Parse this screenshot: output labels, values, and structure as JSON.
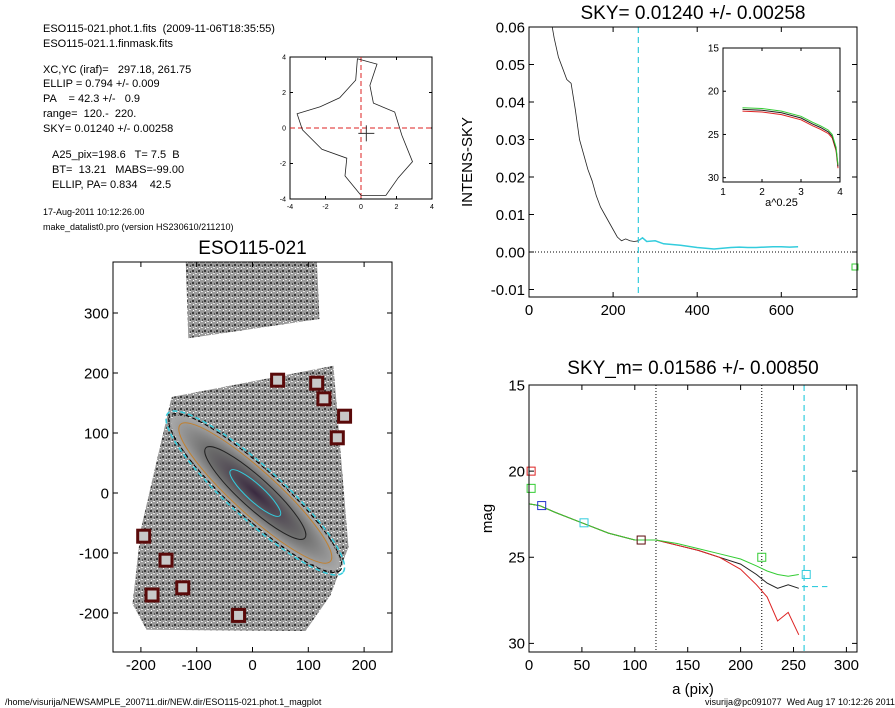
{
  "header": {
    "line1": "ESO115-021.phot.1.fits  (2009-11-06T18:35:55)",
    "line2": "ESO115-021.1.finmask.fits",
    "line3": "XC,YC (iraf)=   297.18, 261.75",
    "line4": "ELLIP = 0.794 +/- 0.009",
    "line5": "PA    = 42.3 +/-   0.9",
    "line6": "range=  120.-  220.",
    "line7": "SKY= 0.01240 +/- 0.00258",
    "line8": "A25_pix=198.6   T= 7.5  B",
    "line9": "BT=  13.21   MABS=-99.00",
    "line10": "ELLIP, PA= 0.834    42.5",
    "date": "17-Aug-2011 10:12:26.00",
    "program": "make_datalist0.pro (version HS230610/211210)"
  },
  "footer": {
    "path": "/home/visurija/NEWSAMPLE_200711.dir/NEW.dir/ESO115-021.phot.1_magplot",
    "user": "visurija@pc091077  Wed Aug 17 10:12:26 2011"
  },
  "colors": {
    "cyan": "#33ccdd",
    "red": "#dd2222",
    "green": "#33cc33",
    "blue": "#2233cc",
    "maroon": "#5a0a0a"
  },
  "chart_data": [
    {
      "type": "line",
      "id": "center-plot",
      "xlim": [
        -4,
        4
      ],
      "ylim": [
        -4,
        4
      ],
      "xticks": [
        "-4",
        "-2",
        "0",
        "2",
        "4"
      ],
      "yticks": [
        "-4",
        "-2",
        "0",
        "2",
        "4"
      ],
      "contour": [
        [
          0,
          -3.8
        ],
        [
          1.4,
          -3.8
        ],
        [
          2.1,
          -2.8
        ],
        [
          2.9,
          -1.9
        ],
        [
          2.3,
          -0.4
        ],
        [
          1.9,
          0.9
        ],
        [
          0.7,
          1.4
        ],
        [
          0.5,
          2.4
        ],
        [
          0.9,
          3.6
        ],
        [
          -0.2,
          3.9
        ],
        [
          -0.3,
          2.7
        ],
        [
          -1.2,
          1.7
        ],
        [
          -2.3,
          1.2
        ],
        [
          -3.6,
          0.8
        ],
        [
          -3.3,
          -0.1
        ],
        [
          -2.2,
          -1.2
        ],
        [
          -0.8,
          -1.7
        ],
        [
          -0.9,
          -2.7
        ],
        [
          0,
          -3.8
        ]
      ],
      "marker": [
        0.3,
        -0.3
      ]
    },
    {
      "type": "image",
      "id": "galaxy-image",
      "title": "ESO115-021",
      "xlim": [
        -250,
        250
      ],
      "ylim": [
        -265,
        385
      ],
      "xticks": [
        "-200",
        "-100",
        "0",
        "100",
        "200"
      ],
      "yticks": [
        "-200",
        "-100",
        "0",
        "100",
        "200",
        "300"
      ],
      "masked_sources": [
        [
          45,
          188
        ],
        [
          115,
          183
        ],
        [
          128,
          157
        ],
        [
          165,
          128
        ],
        [
          152,
          92
        ],
        [
          -195,
          -72
        ],
        [
          -155,
          -112
        ],
        [
          -180,
          -170
        ],
        [
          -125,
          -158
        ],
        [
          -25,
          -204
        ]
      ]
    },
    {
      "type": "line",
      "id": "sky-plot",
      "title": "SKY= 0.01240 +/- 0.00258",
      "ylabel": "INTENS-SKY",
      "xlim": [
        0,
        780
      ],
      "ylim": [
        -0.012,
        0.06
      ],
      "xticks": [
        "0",
        "200",
        "400",
        "600"
      ],
      "yticks": [
        "-0.01",
        "0.00",
        "0.01",
        "0.02",
        "0.03",
        "0.04",
        "0.05",
        "0.06"
      ],
      "sky_x": 260,
      "profile": [
        [
          52,
          0.062
        ],
        [
          60,
          0.057
        ],
        [
          70,
          0.052
        ],
        [
          80,
          0.049
        ],
        [
          90,
          0.046
        ],
        [
          100,
          0.045
        ],
        [
          110,
          0.038
        ],
        [
          120,
          0.03
        ],
        [
          130,
          0.026
        ],
        [
          140,
          0.022
        ],
        [
          150,
          0.019
        ],
        [
          160,
          0.015
        ],
        [
          170,
          0.012
        ],
        [
          180,
          0.01
        ],
        [
          190,
          0.008
        ],
        [
          200,
          0.006
        ],
        [
          210,
          0.004
        ],
        [
          220,
          0.003
        ],
        [
          230,
          0.0035
        ],
        [
          240,
          0.003
        ],
        [
          250,
          0.0028
        ],
        [
          260,
          0.003
        ],
        [
          270,
          0.0038
        ],
        [
          280,
          0.0028
        ],
        [
          300,
          0.003
        ],
        [
          320,
          0.0022
        ],
        [
          340,
          0.002
        ],
        [
          360,
          0.0018
        ],
        [
          380,
          0.0015
        ],
        [
          400,
          0.0012
        ],
        [
          420,
          0.001
        ],
        [
          440,
          0.0008
        ],
        [
          460,
          0.001
        ],
        [
          480,
          0.0012
        ],
        [
          500,
          0.0013
        ],
        [
          520,
          0.0012
        ],
        [
          540,
          0.0012
        ],
        [
          560,
          0.0013
        ],
        [
          580,
          0.0014
        ],
        [
          600,
          0.0014
        ],
        [
          620,
          0.0013
        ],
        [
          640,
          0.0014
        ]
      ],
      "inset": {
        "xlabel": "a^0.25",
        "xlim": [
          1,
          4
        ],
        "ylim": [
          15,
          30.5
        ],
        "xticks": [
          "1",
          "2",
          "3",
          "4"
        ],
        "yticks": [
          "15",
          "20",
          "25",
          "30"
        ],
        "profile": [
          [
            1.5,
            21.9
          ],
          [
            2.0,
            22.0
          ],
          [
            2.5,
            22.3
          ],
          [
            3.0,
            22.9
          ],
          [
            3.3,
            23.6
          ],
          [
            3.5,
            24.0
          ],
          [
            3.7,
            24.5
          ],
          [
            3.8,
            25.0
          ],
          [
            3.9,
            26.5
          ],
          [
            3.95,
            28.5
          ]
        ]
      }
    },
    {
      "type": "line",
      "id": "mag-plot",
      "title": "SKY_m=  0.01586 +/- 0.00850",
      "xlabel": "a (pix)",
      "ylabel": "mag",
      "xlim": [
        0,
        310
      ],
      "ylim": [
        15,
        30.5
      ],
      "xticks": [
        "0",
        "50",
        "100",
        "150",
        "200",
        "250",
        "300"
      ],
      "yticks": [
        "15",
        "20",
        "25",
        "30"
      ],
      "vlines": [
        120,
        220
      ],
      "sky_x": 260,
      "series": [
        {
          "color": "black",
          "values": [
            [
              0,
              21.9
            ],
            [
              10,
              22.0
            ],
            [
              25,
              22.4
            ],
            [
              50,
              23.0
            ],
            [
              75,
              23.6
            ],
            [
              100,
              24.0
            ],
            [
              120,
              24.0
            ],
            [
              140,
              24.3
            ],
            [
              160,
              24.6
            ],
            [
              180,
              25.0
            ],
            [
              200,
              25.4
            ],
            [
              215,
              26.0
            ],
            [
              225,
              26.5
            ],
            [
              235,
              26.8
            ],
            [
              245,
              26.6
            ],
            [
              255,
              26.8
            ]
          ]
        },
        {
          "color": "red",
          "values": [
            [
              0,
              21.9
            ],
            [
              10,
              22.0
            ],
            [
              25,
              22.4
            ],
            [
              50,
              23.0
            ],
            [
              75,
              23.6
            ],
            [
              100,
              24.0
            ],
            [
              120,
              24.0
            ],
            [
              140,
              24.3
            ],
            [
              160,
              24.6
            ],
            [
              180,
              25.0
            ],
            [
              200,
              25.7
            ],
            [
              215,
              26.6
            ],
            [
              225,
              27.3
            ],
            [
              235,
              28.7
            ],
            [
              245,
              28.2
            ],
            [
              255,
              29.5
            ]
          ]
        },
        {
          "color": "green",
          "values": [
            [
              0,
              21.9
            ],
            [
              10,
              22.0
            ],
            [
              25,
              22.4
            ],
            [
              50,
              23.0
            ],
            [
              75,
              23.6
            ],
            [
              100,
              24.0
            ],
            [
              120,
              24.0
            ],
            [
              140,
              24.2
            ],
            [
              160,
              24.5
            ],
            [
              180,
              24.8
            ],
            [
              200,
              25.1
            ],
            [
              215,
              25.5
            ],
            [
              225,
              25.8
            ],
            [
              235,
              26.0
            ],
            [
              245,
              26.1
            ],
            [
              255,
              26.0
            ]
          ]
        }
      ],
      "boxes": [
        {
          "color": "red",
          "x": 2,
          "y": 20.0
        },
        {
          "color": "green",
          "x": 2,
          "y": 21.0
        },
        {
          "color": "blue",
          "x": 12,
          "y": 22.0
        },
        {
          "color": "cyan",
          "x": 52,
          "y": 23.0
        },
        {
          "color": "maroon",
          "x": 106,
          "y": 24.0
        },
        {
          "color": "green",
          "x": 220,
          "y": 25.0
        },
        {
          "color": "cyan",
          "x": 262,
          "y": 26.0
        }
      ]
    }
  ]
}
